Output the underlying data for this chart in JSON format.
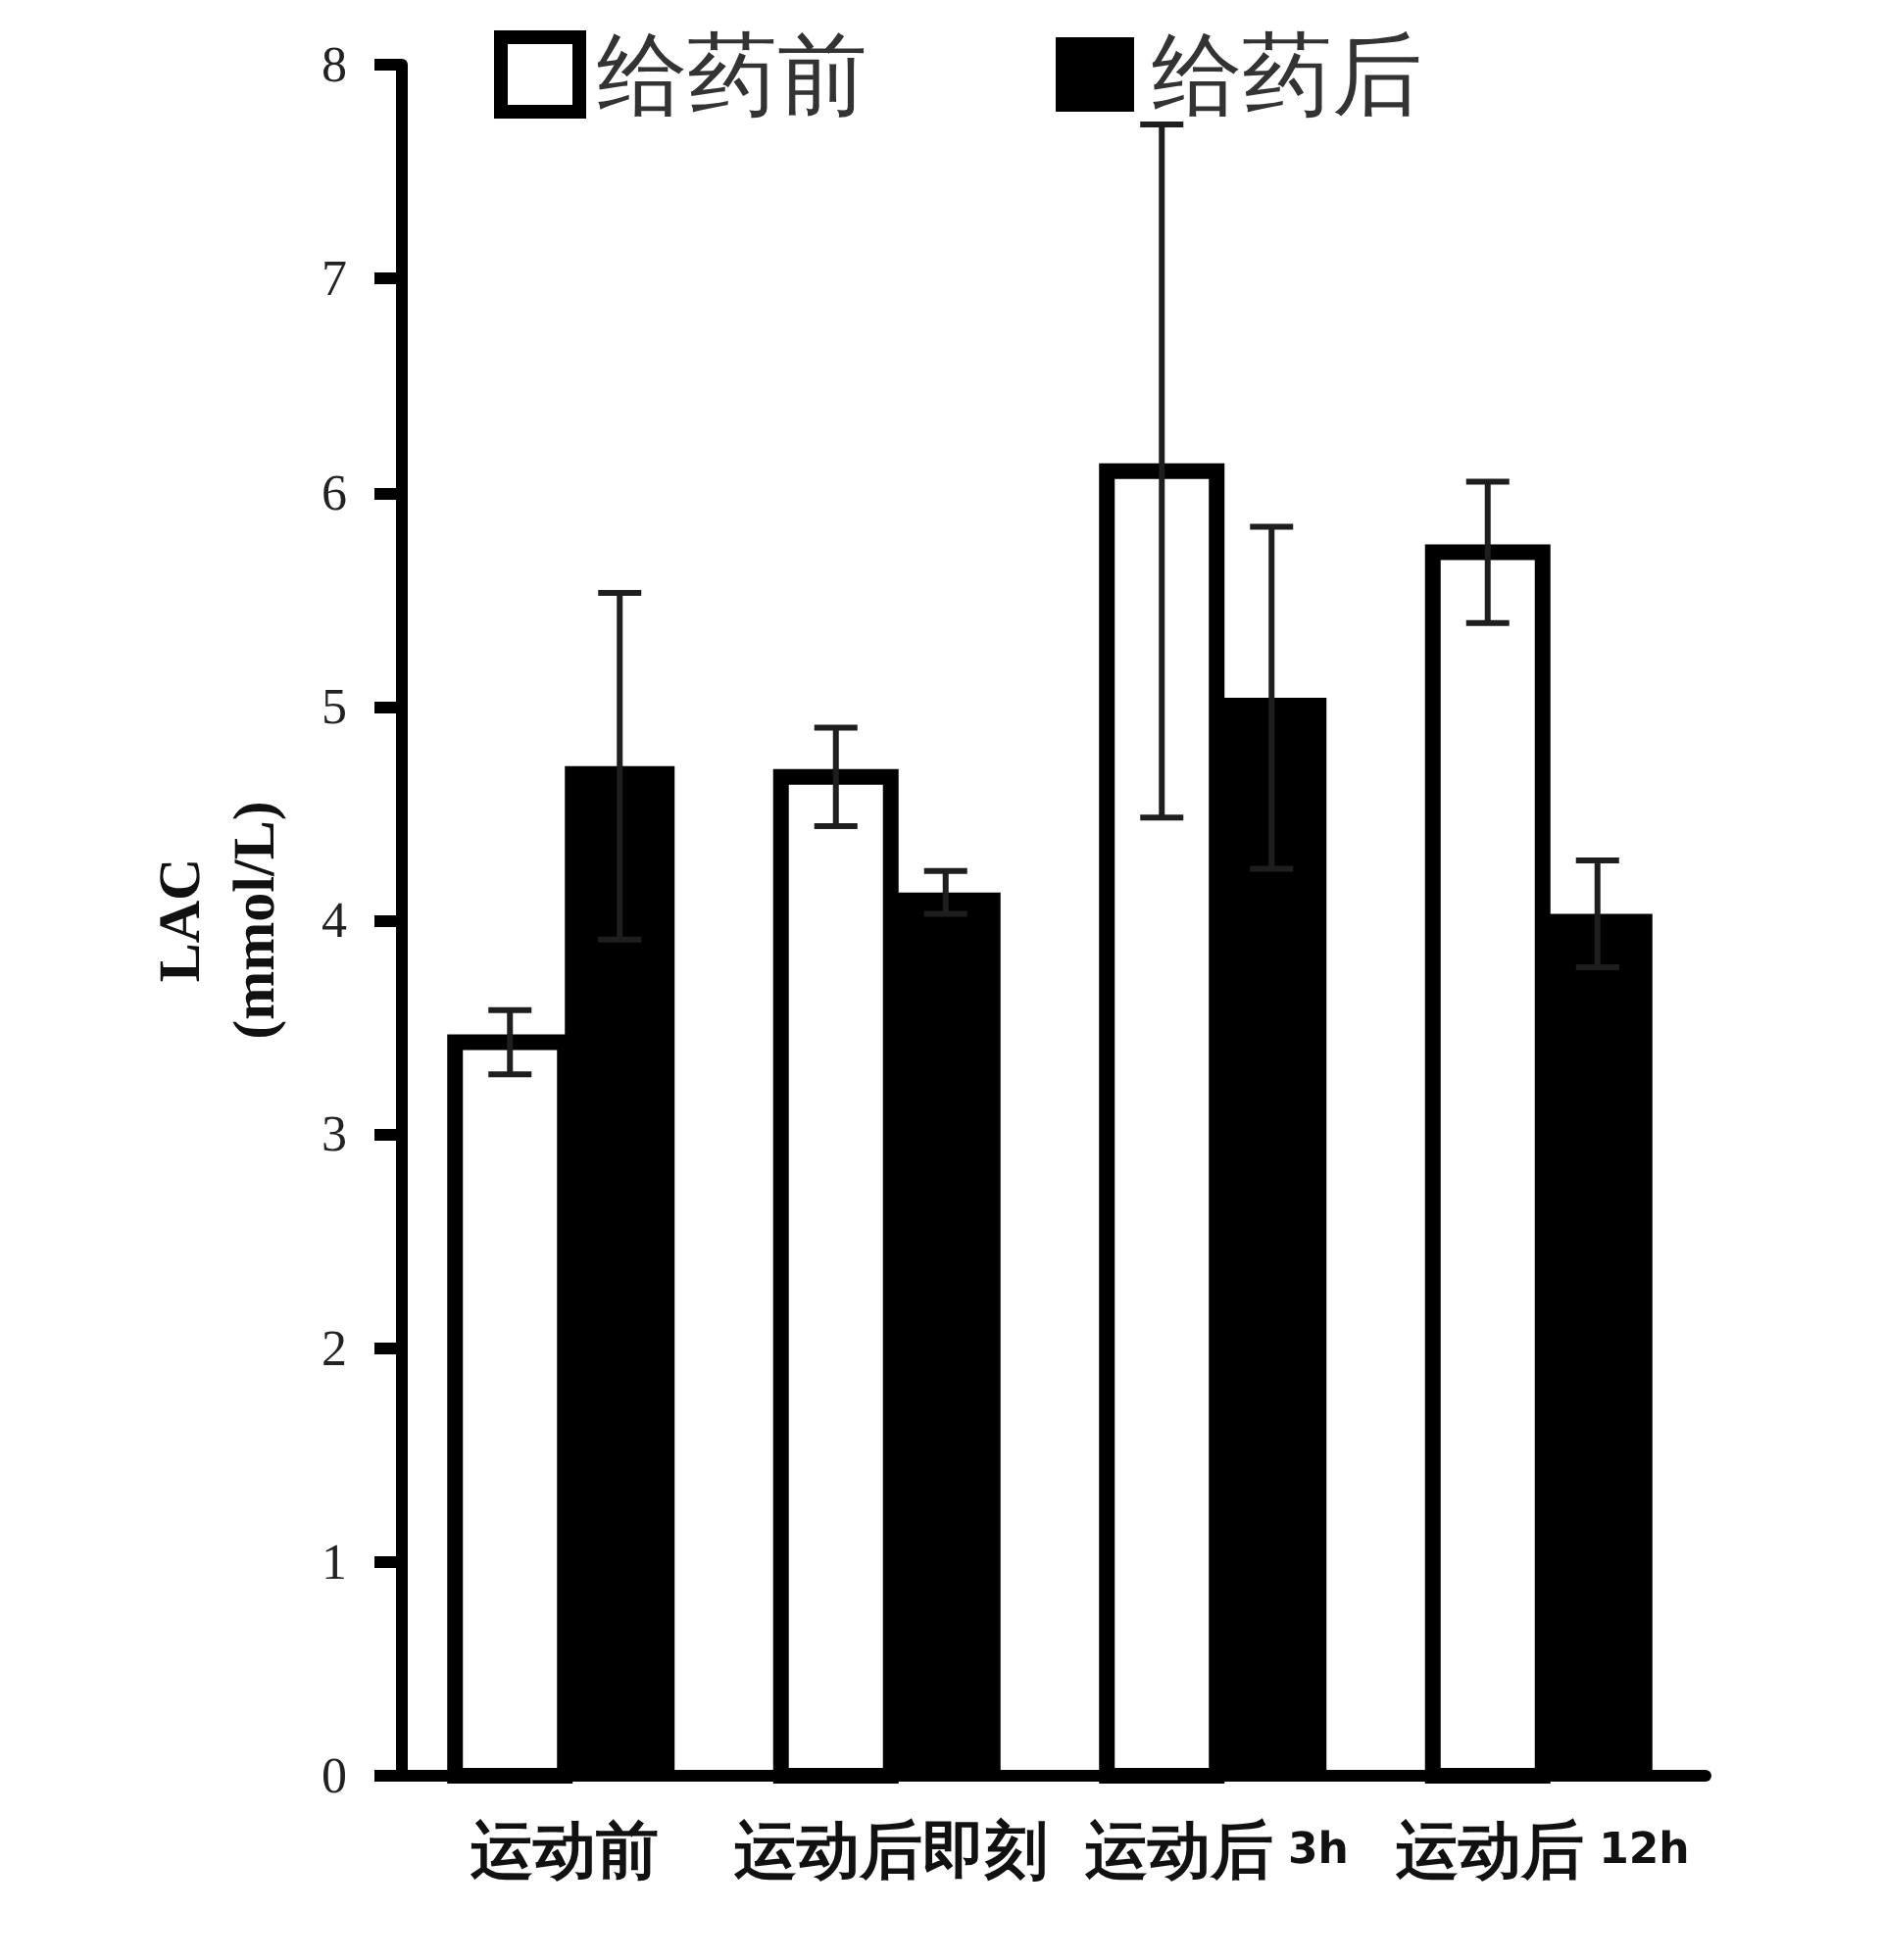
{
  "chart_data": {
    "type": "bar",
    "ylabel": "LAC (mmol/L)",
    "categories": [
      "运动前",
      "运动后即刻",
      "运动后 3h",
      "运动后 12h"
    ],
    "series": [
      {
        "name": "给药前",
        "color": "#ffffff",
        "values": [
          3.43,
          4.67,
          6.1,
          5.72
        ],
        "errors": [
          0.15,
          0.23,
          1.62,
          0.33
        ]
      },
      {
        "name": "给药后",
        "color": "#000000",
        "values": [
          4.72,
          4.13,
          5.04,
          4.03
        ],
        "errors": [
          0.81,
          0.1,
          0.8,
          0.25
        ]
      }
    ],
    "ylim": [
      0,
      8
    ],
    "yticks": [
      0,
      1,
      2,
      3,
      4,
      5,
      6,
      7,
      8
    ],
    "grid": false,
    "legend": "top"
  }
}
